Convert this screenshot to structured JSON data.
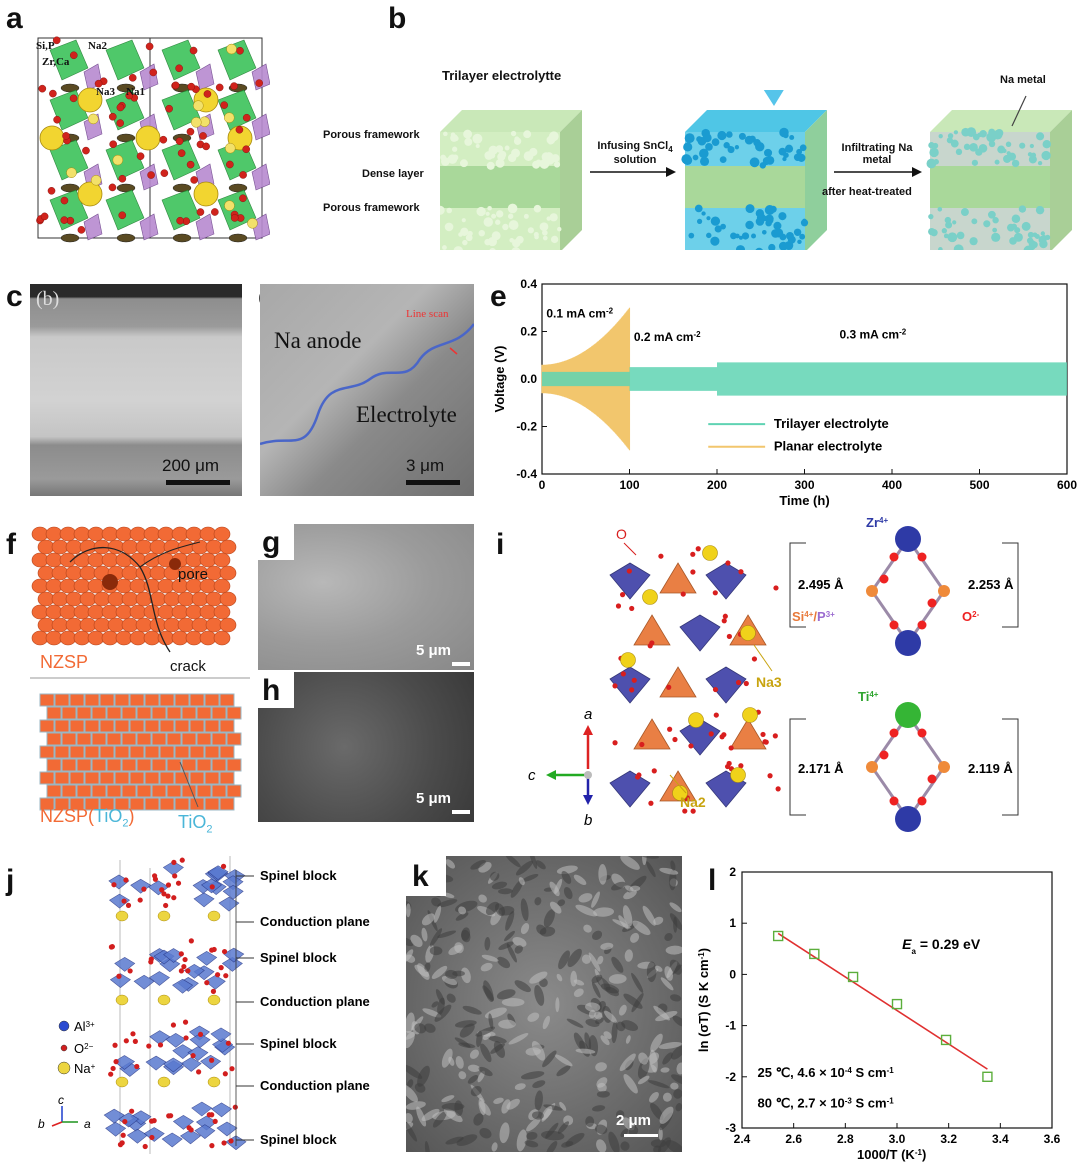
{
  "panels": {
    "a": {
      "letter": "a",
      "labels": {
        "sip": "Si,P",
        "na2": "Na2",
        "zrca": "Zr,Ca",
        "na3": "Na3",
        "na1": "Na1"
      }
    },
    "b": {
      "letter": "b",
      "title": "Trilayer electrolytte",
      "left_labels": [
        "Porous framework",
        "Dense layer",
        "Porous framework"
      ],
      "step1": [
        "Infusing SnCl",
        "4",
        "solution"
      ],
      "step2": [
        "Infiltrating Na",
        "metal",
        "after heat-treated"
      ],
      "na_metal": "Na metal"
    },
    "c": {
      "letter": "c",
      "sub": "(b)",
      "scale": "200 μm"
    },
    "d": {
      "letter": "d",
      "na_anode": "Na anode",
      "electrolyte": "Electrolyte",
      "line_scan": "Line scan",
      "scale": "3 μm"
    },
    "e": {
      "letter": "e"
    },
    "f": {
      "letter": "f",
      "pore": "pore",
      "crack": "crack",
      "nzsp": "NZSP",
      "nzsp_tio2_a": "NZSP(",
      "nzsp_tio2_b": "TiO",
      "nzsp_tio2_c": "2",
      "nzsp_tio2_d": ")",
      "tio2": "TiO",
      "tio2_sub": "2"
    },
    "g": {
      "letter": "g",
      "scale": "5 μm"
    },
    "h": {
      "letter": "h",
      "scale": "5 μm"
    },
    "i": {
      "letter": "i",
      "o_label": "O",
      "na3": "Na3",
      "na2": "Na2",
      "axis_a": "a",
      "axis_b": "b",
      "axis_c": "c",
      "zr": "Zr",
      "zr_sup": "4+",
      "si": "Si",
      "si_sup": "4+",
      "slash": "/",
      "p": "P",
      "p_sup": "3+",
      "o2": "O",
      "o2_sup": "2-",
      "d1": "2.495 Å",
      "d2": "2.253 Å",
      "ti": "Ti",
      "ti_sup": "4+",
      "d3": "2.171 Å",
      "d4": "2.119 Å"
    },
    "j": {
      "letter": "j",
      "blocks": [
        "Spinel block",
        "Conduction plane",
        "Spinel block",
        "Conduction plane",
        "Spinel block",
        "Conduction plane",
        "Spinel block"
      ],
      "legend": [
        {
          "sym": "Al",
          "sup": "3+"
        },
        {
          "sym": "O",
          "sup": "2−"
        },
        {
          "sym": "Na",
          "sup": "+"
        }
      ],
      "axis_c": "c",
      "axis_b": "b",
      "axis_a": "a"
    },
    "k": {
      "letter": "k",
      "scale": "2 μm"
    },
    "l": {
      "letter": "l"
    }
  },
  "chart_data": [
    {
      "panel": "e",
      "type": "line",
      "xlabel": "Time (h)",
      "ylabel": "Voltage (V)",
      "xlim": [
        0,
        600
      ],
      "ylim": [
        -0.4,
        0.4
      ],
      "xticks": [
        0,
        100,
        200,
        300,
        400,
        500,
        600
      ],
      "yticks": [
        -0.4,
        -0.2,
        0.0,
        0.2,
        0.4
      ],
      "yticklabels": [
        "-0.4",
        "-0.2",
        "0.0",
        "0.2",
        "0.4"
      ],
      "legend_position": "bottom-center",
      "annotations": [
        {
          "text": "0.1 mA cm",
          "sup": "-2",
          "x": 5,
          "y": 0.26
        },
        {
          "text": "0.2 mA cm",
          "sup": "-2",
          "x": 105,
          "y": 0.16
        },
        {
          "text": "0.3 mA cm",
          "sup": "-2",
          "x": 340,
          "y": 0.17
        }
      ],
      "series": [
        {
          "name": "Trilayer electrolyte",
          "color": "#5fd3b3",
          "segments": [
            {
              "x": [
                0,
                100
              ],
              "amp": 0.03
            },
            {
              "x": [
                100,
                200
              ],
              "amp": 0.05
            },
            {
              "x": [
                200,
                600
              ],
              "amp": 0.07
            }
          ]
        },
        {
          "name": "Planar electrolyte",
          "color": "#f2c66d",
          "segments": [
            {
              "x": [
                0,
                100
              ],
              "amp_start": 0.06,
              "amp_end": 0.3
            }
          ]
        }
      ]
    },
    {
      "panel": "l",
      "type": "scatter",
      "xlabel": "1000/T (K",
      "xlabel_sup": "-1",
      "xlabel_end": ")",
      "ylabel": "ln (σT) (S K cm",
      "ylabel_sup": "-1",
      "ylabel_end": ")",
      "xlim": [
        2.4,
        3.6
      ],
      "ylim": [
        -3,
        2
      ],
      "xticks": [
        2.4,
        2.6,
        2.8,
        3.0,
        3.2,
        3.4,
        3.6
      ],
      "xticklabels": [
        "2.4",
        "2.6",
        "2.8",
        "3.0",
        "3.2",
        "3.4",
        "3.6"
      ],
      "yticks": [
        -3,
        -2,
        -1,
        0,
        1,
        2
      ],
      "x": [
        2.54,
        2.68,
        2.83,
        3.0,
        3.19,
        3.35
      ],
      "y": [
        0.75,
        0.4,
        -0.05,
        -0.58,
        -1.28,
        -2.0
      ],
      "fit": {
        "x": [
          2.54,
          3.35
        ],
        "y": [
          0.8,
          -1.85
        ],
        "color": "#e03030"
      },
      "marker_color": "#5cae3c",
      "annotations": {
        "ea_main": "E",
        "ea_sub": "a",
        "ea_val": " = 0.29 eV",
        "t1": "25 ℃, 4.6 × 10",
        "t1_sup": "-4",
        "t1_end": " S cm",
        "t1_end_sup": "-1",
        "t2": "80 ℃, 2.7 × 10",
        "t2_sup": "-3",
        "t2_end": " S cm",
        "t2_end_sup": "-1"
      }
    }
  ],
  "colors": {
    "trilayer": "#5fd3b3",
    "planar": "#f2c66d",
    "fit": "#e03030",
    "marker": "#5cae3c",
    "nzsp": "#f26a35"
  }
}
